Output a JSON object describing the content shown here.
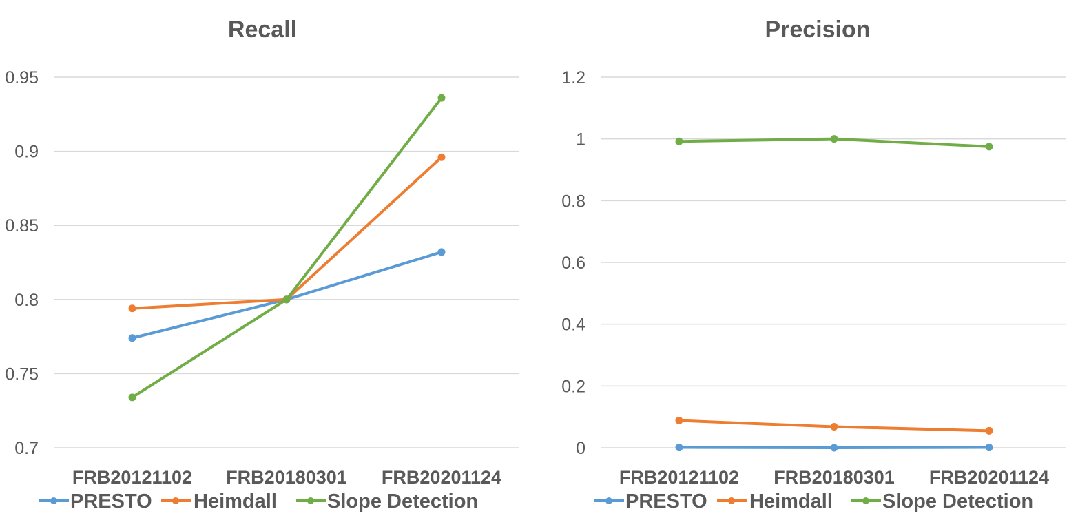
{
  "colors": {
    "presto": "#5b9bd5",
    "heimdall": "#ed7d31",
    "slope": "#70ad47",
    "text": "#595959",
    "grid": "#d9d9d9"
  },
  "chart_data": [
    {
      "type": "line",
      "title": "Recall",
      "categories": [
        "FRB20121102",
        "FRB20180301",
        "FRB20201124"
      ],
      "ylim": [
        0.7,
        0.95
      ],
      "yticks": [
        "0.7",
        "0.75",
        "0.8",
        "0.85",
        "0.9",
        "0.95"
      ],
      "ytick_values": [
        0.7,
        0.75,
        0.8,
        0.85,
        0.9,
        0.95
      ],
      "legend_position": "bottom",
      "series": [
        {
          "name": "PRESTO",
          "values": [
            0.774,
            0.8,
            0.832
          ]
        },
        {
          "name": "Heimdall",
          "values": [
            0.794,
            0.8,
            0.896
          ]
        },
        {
          "name": "Slope Detection",
          "values": [
            0.734,
            0.8,
            0.936
          ]
        }
      ]
    },
    {
      "type": "line",
      "title": "Precision",
      "categories": [
        "FRB20121102",
        "FRB20180301",
        "FRB20201124"
      ],
      "ylim": [
        0,
        1.2
      ],
      "yticks": [
        "0",
        "0.2",
        "0.4",
        "0.6",
        "0.8",
        "1",
        "1.2"
      ],
      "ytick_values": [
        0,
        0.2,
        0.4,
        0.6,
        0.8,
        1.0,
        1.2
      ],
      "legend_position": "bottom",
      "series": [
        {
          "name": "PRESTO",
          "values": [
            0.001,
            0.0,
            0.001
          ]
        },
        {
          "name": "Heimdall",
          "values": [
            0.088,
            0.068,
            0.055
          ]
        },
        {
          "name": "Slope Detection",
          "values": [
            0.992,
            1.0,
            0.975
          ]
        }
      ]
    }
  ]
}
